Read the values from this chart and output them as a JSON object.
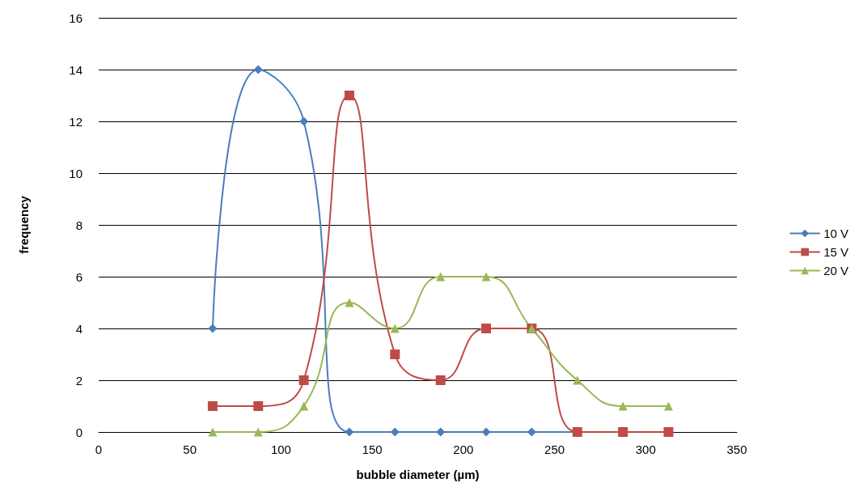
{
  "chart_data": {
    "type": "line",
    "xlabel": "bubble diameter (µm)",
    "ylabel": "frequency",
    "x": [
      62.5,
      87.5,
      112.5,
      137.5,
      162.5,
      187.5,
      212.5,
      237.5,
      262.5,
      287.5,
      312.5
    ],
    "series": [
      {
        "name": "10 V",
        "color": "#4a7ebb",
        "marker": "diamond",
        "values": [
          4,
          14,
          12,
          0,
          0,
          0,
          0,
          0,
          0,
          0,
          0
        ]
      },
      {
        "name": "15 V",
        "color": "#be4b48",
        "marker": "square",
        "values": [
          1,
          1,
          2,
          13,
          3,
          2,
          4,
          4,
          0,
          0,
          0
        ]
      },
      {
        "name": "20 V",
        "color": "#98b954",
        "marker": "triangle",
        "values": [
          0,
          0,
          1,
          5,
          4,
          6,
          6,
          4,
          2,
          1,
          1
        ]
      }
    ],
    "xlim": [
      0,
      350
    ],
    "xticks": [
      0,
      50,
      100,
      150,
      200,
      250,
      300,
      350
    ],
    "ylim": [
      0,
      16
    ],
    "yticks": [
      0,
      2,
      4,
      6,
      8,
      10,
      12,
      14,
      16
    ],
    "grid": "y",
    "legend": "right",
    "line_style": "solid"
  }
}
